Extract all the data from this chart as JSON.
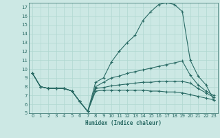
{
  "xlabel": "Humidex (Indice chaleur)",
  "bg_color": "#cce8e4",
  "line_color": "#2a6b65",
  "grid_color": "#b0d8d0",
  "xlim": [
    -0.5,
    23.5
  ],
  "ylim": [
    5,
    17.5
  ],
  "xticks": [
    0,
    1,
    2,
    3,
    4,
    5,
    6,
    7,
    8,
    9,
    10,
    11,
    12,
    13,
    14,
    15,
    16,
    17,
    18,
    19,
    20,
    21,
    22,
    23
  ],
  "yticks": [
    5,
    6,
    7,
    8,
    9,
    10,
    11,
    12,
    13,
    14,
    15,
    16,
    17
  ],
  "lines": [
    {
      "x": [
        0,
        1,
        2,
        3,
        4,
        5,
        6,
        7,
        8,
        9,
        10,
        11,
        12,
        13,
        14,
        15,
        16,
        17,
        18,
        19,
        20,
        21,
        22,
        23
      ],
      "y": [
        9.5,
        8.0,
        7.8,
        7.8,
        7.8,
        7.5,
        6.3,
        5.2,
        8.5,
        9.0,
        10.8,
        12.0,
        13.0,
        13.8,
        15.5,
        16.5,
        17.3,
        17.5,
        17.3,
        16.5,
        11.0,
        9.2,
        8.2,
        6.5
      ]
    },
    {
      "x": [
        0,
        1,
        2,
        3,
        4,
        5,
        6,
        7,
        8,
        9,
        10,
        11,
        12,
        13,
        14,
        15,
        16,
        17,
        18,
        19,
        20,
        21,
        22,
        23
      ],
      "y": [
        9.5,
        8.0,
        7.8,
        7.8,
        7.8,
        7.5,
        6.3,
        5.2,
        8.0,
        8.5,
        9.0,
        9.2,
        9.5,
        9.7,
        9.9,
        10.1,
        10.3,
        10.5,
        10.7,
        10.9,
        9.3,
        8.2,
        7.5,
        7.0
      ]
    },
    {
      "x": [
        0,
        1,
        2,
        3,
        4,
        5,
        6,
        7,
        8,
        9,
        10,
        11,
        12,
        13,
        14,
        15,
        16,
        17,
        18,
        19,
        20,
        21,
        22,
        23
      ],
      "y": [
        9.5,
        8.0,
        7.8,
        7.8,
        7.8,
        7.5,
        6.3,
        5.2,
        7.8,
        7.9,
        8.1,
        8.2,
        8.3,
        8.4,
        8.5,
        8.5,
        8.6,
        8.6,
        8.6,
        8.6,
        8.4,
        7.8,
        7.3,
        6.8
      ]
    },
    {
      "x": [
        0,
        1,
        2,
        3,
        4,
        5,
        6,
        7,
        8,
        9,
        10,
        11,
        12,
        13,
        14,
        15,
        16,
        17,
        18,
        19,
        20,
        21,
        22,
        23
      ],
      "y": [
        9.5,
        8.0,
        7.8,
        7.8,
        7.8,
        7.5,
        6.3,
        5.2,
        7.5,
        7.6,
        7.6,
        7.6,
        7.6,
        7.6,
        7.6,
        7.5,
        7.5,
        7.4,
        7.4,
        7.3,
        7.1,
        6.9,
        6.7,
        6.5
      ]
    }
  ]
}
